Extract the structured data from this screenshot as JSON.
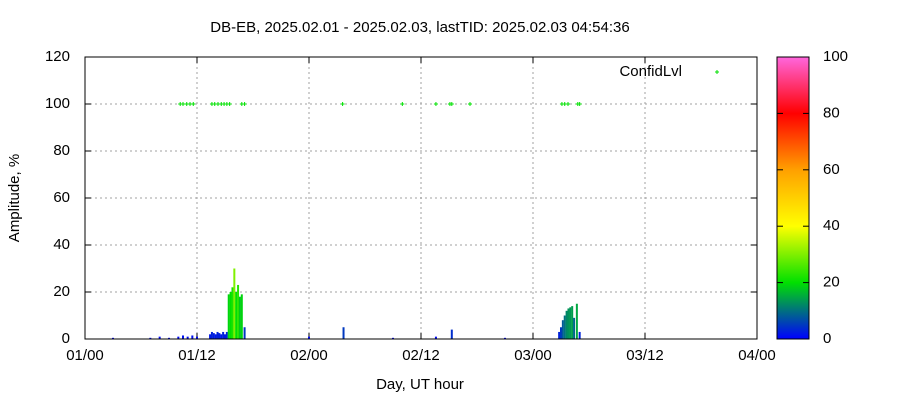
{
  "chart_data": {
    "type": "impulse",
    "title": "DB-EB, 2025.02.01 - 2025.02.03, lastTID: 2025.02.03 04:54:36",
    "xlabel": "Day, UT hour",
    "ylabel": "Amplitude, %",
    "xlim": [
      0,
      72
    ],
    "xticks": [
      {
        "value": 0,
        "label": "01/00"
      },
      {
        "value": 12,
        "label": "01/12"
      },
      {
        "value": 24,
        "label": "02/00"
      },
      {
        "value": 36,
        "label": "02/12"
      },
      {
        "value": 48,
        "label": "03/00"
      },
      {
        "value": 60,
        "label": "03/12"
      },
      {
        "value": 72,
        "label": "04/00"
      }
    ],
    "ylim": [
      0,
      120
    ],
    "yticks": [
      0,
      20,
      40,
      60,
      80,
      100,
      120
    ],
    "grid": true,
    "legend": "top-right",
    "cblim": [
      0,
      100
    ],
    "cbticks": [
      0,
      20,
      40,
      60,
      80,
      100
    ],
    "palette": [
      "#0000ff",
      "#00e000",
      "#ffff00",
      "#ffa000",
      "#ff0000",
      "#ff66dd"
    ],
    "series": [
      {
        "name": "ConfidLvl",
        "color": "#00e000",
        "style": "points",
        "x": [
          10.2,
          10.5,
          10.9,
          11.25,
          11.6,
          13.6,
          13.9,
          14.25,
          14.6,
          14.9,
          15.2,
          15.5,
          16.8,
          17.1,
          27.6,
          34.0,
          37.6,
          39.1,
          39.3,
          41.25,
          51.1,
          51.4,
          51.75,
          52.8,
          53.0
        ],
        "values": [
          100,
          100,
          100,
          100,
          100,
          100,
          100,
          100,
          100,
          100,
          100,
          100,
          100,
          100,
          100,
          100,
          100,
          100,
          100,
          100,
          100,
          100,
          100,
          100,
          100
        ]
      },
      {
        "style": "impulses",
        "x": [
          3,
          7,
          8,
          9,
          10,
          10.5,
          11,
          11.5,
          12,
          13.4,
          13.6,
          13.8,
          14.0,
          14.2,
          14.4,
          14.6,
          14.8,
          15.0,
          15.2,
          15.4,
          15.6,
          15.8,
          16.0,
          16.2,
          16.4,
          16.6,
          16.8,
          17.1,
          24,
          27.7,
          33,
          37.6,
          39.3,
          45,
          50.8,
          51.0,
          51.2,
          51.4,
          51.6,
          51.8,
          52.0,
          52.2,
          52.4,
          52.7,
          53.0
        ],
        "values": [
          0.5,
          0.5,
          1,
          0.5,
          1,
          1.5,
          1,
          1.5,
          1,
          2,
          3,
          2.5,
          2,
          3,
          2.5,
          2,
          3,
          2,
          3,
          19,
          20,
          22,
          30,
          20,
          23,
          18,
          19,
          5,
          1,
          5,
          0.5,
          1,
          4,
          0.5,
          3,
          5,
          8,
          10,
          12,
          13,
          13.5,
          14,
          9,
          15,
          3
        ]
      }
    ]
  }
}
